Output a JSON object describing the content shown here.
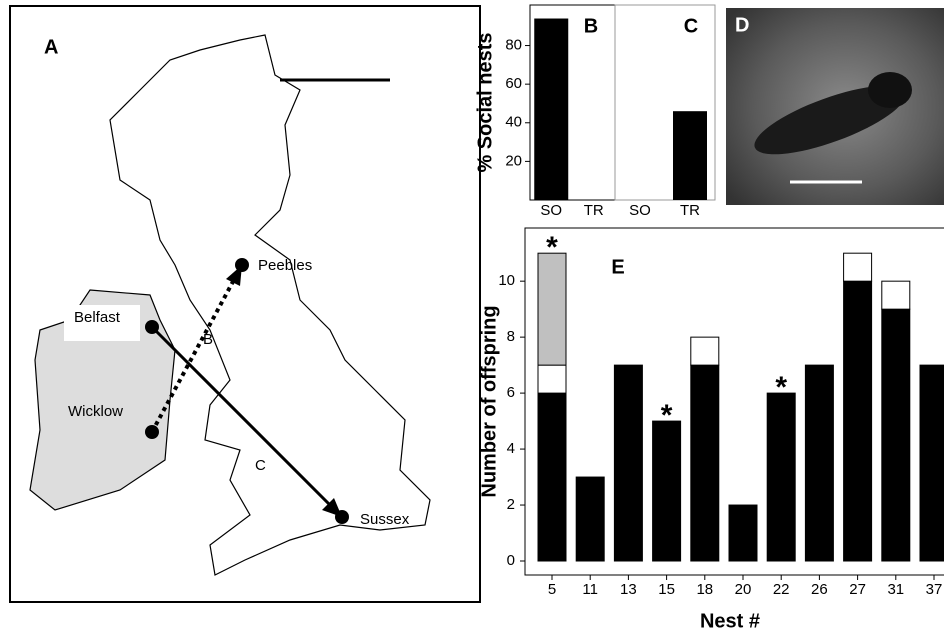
{
  "map": {
    "label": "A",
    "places": [
      "Peebles",
      "Belfast",
      "Wicklow",
      "Sussex"
    ],
    "routes": [
      "B",
      "C"
    ]
  },
  "photo": {
    "label": "D"
  },
  "chart_data": [
    {
      "type": "bar",
      "title": "B",
      "y_label": "% Social nests",
      "categories": [
        "SO",
        "TR"
      ],
      "values": [
        94,
        0
      ],
      "color": "#000000",
      "ylim": [
        0,
        101
      ],
      "yticks": [
        20,
        40,
        60,
        80
      ]
    },
    {
      "type": "bar",
      "title": "C",
      "categories": [
        "SO",
        "TR"
      ],
      "values": [
        0,
        46
      ],
      "color": "#000000",
      "ylim": [
        0,
        101
      ]
    },
    {
      "type": "stacked_bar",
      "title": "E",
      "x_label": "Nest #",
      "y_label": "Number of offspring",
      "categories": [
        "5",
        "11",
        "13",
        "15",
        "18",
        "20",
        "22",
        "26",
        "27",
        "31",
        "37"
      ],
      "series": [
        {
          "color": "#000000",
          "values": [
            6,
            3,
            7,
            5,
            7,
            2,
            6,
            7,
            10,
            9,
            7
          ]
        },
        {
          "color": "#ffffff",
          "values": [
            1,
            0,
            0,
            0,
            1,
            0,
            0,
            0,
            1,
            1,
            0
          ]
        },
        {
          "color": "#c0c0c0",
          "values": [
            4,
            0,
            0,
            0,
            0,
            0,
            0,
            0,
            0,
            0,
            0
          ]
        }
      ],
      "annotations": [
        "*",
        null,
        null,
        "*",
        null,
        null,
        "*",
        null,
        null,
        null,
        null
      ],
      "ylim": [
        -0.5,
        11.9
      ],
      "yticks": [
        0,
        2,
        4,
        6,
        8,
        10
      ]
    }
  ]
}
